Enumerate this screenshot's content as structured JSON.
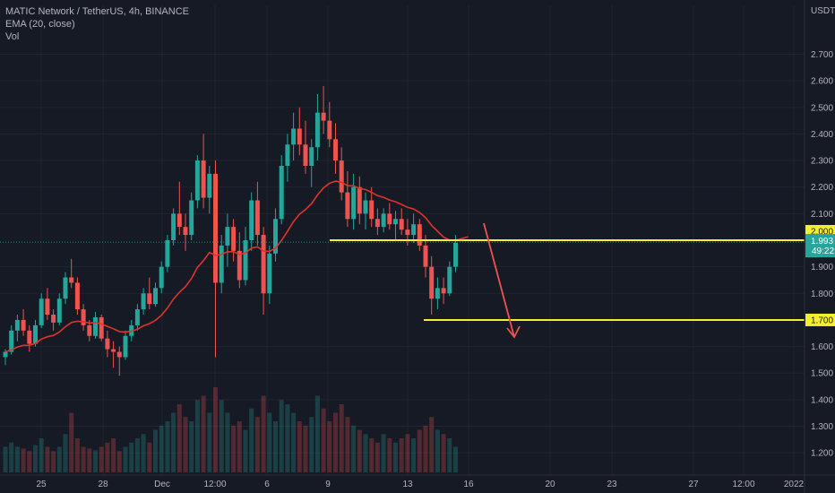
{
  "legend": {
    "symbol": "MATIC Network / TetherUS, 4h, BINANCE",
    "indicator": "EMA (20, close)",
    "volume": "Vol"
  },
  "colors": {
    "background": "#161a25",
    "bull": "#26a69a",
    "bear": "#ef5350",
    "ema": "#e0342a",
    "level_line": "#f4ee2e",
    "arrow": "#f0524f",
    "current_box": "#26a69a",
    "grid": "#1f2430"
  },
  "chart_data": {
    "type": "candlestick",
    "symbol": "MATIC Network / TetherUS",
    "timeframe": "4h",
    "exchange": "BINANCE",
    "currency": "USDT",
    "ylim": [
      1.15,
      2.85
    ],
    "y_ticks": [
      "2.700",
      "2.600",
      "2.500",
      "2.400",
      "2.300",
      "2.200",
      "2.100",
      "1.900",
      "1.800",
      "1.600",
      "1.500",
      "1.400",
      "1.300",
      "1.200"
    ],
    "x_ticks": [
      "25",
      "28",
      "Dec",
      "12:00",
      "6",
      "9",
      "13",
      "16",
      "20",
      "23",
      "27",
      "12:00",
      "2022"
    ],
    "current_price": "1.993",
    "countdown": "49:22",
    "levels": [
      {
        "label": "2.000",
        "value": 2.0
      },
      {
        "label": "1.700",
        "value": 1.7
      }
    ],
    "candles": [
      [
        1.56,
        1.59,
        1.53,
        1.58
      ],
      [
        1.58,
        1.68,
        1.57,
        1.66
      ],
      [
        1.66,
        1.72,
        1.62,
        1.7
      ],
      [
        1.7,
        1.74,
        1.64,
        1.66
      ],
      [
        1.66,
        1.68,
        1.58,
        1.61
      ],
      [
        1.61,
        1.7,
        1.6,
        1.68
      ],
      [
        1.68,
        1.8,
        1.67,
        1.78
      ],
      [
        1.78,
        1.82,
        1.7,
        1.72
      ],
      [
        1.72,
        1.74,
        1.66,
        1.69
      ],
      [
        1.69,
        1.8,
        1.68,
        1.78
      ],
      [
        1.78,
        1.88,
        1.76,
        1.86
      ],
      [
        1.86,
        1.93,
        1.82,
        1.84
      ],
      [
        1.84,
        1.86,
        1.72,
        1.74
      ],
      [
        1.74,
        1.76,
        1.66,
        1.68
      ],
      [
        1.68,
        1.7,
        1.62,
        1.64
      ],
      [
        1.64,
        1.73,
        1.63,
        1.71
      ],
      [
        1.71,
        1.72,
        1.62,
        1.63
      ],
      [
        1.63,
        1.66,
        1.56,
        1.59
      ],
      [
        1.59,
        1.62,
        1.52,
        1.58
      ],
      [
        1.58,
        1.6,
        1.49,
        1.56
      ],
      [
        1.56,
        1.66,
        1.55,
        1.64
      ],
      [
        1.64,
        1.7,
        1.62,
        1.68
      ],
      [
        1.68,
        1.76,
        1.66,
        1.74
      ],
      [
        1.74,
        1.82,
        1.72,
        1.8
      ],
      [
        1.8,
        1.86,
        1.74,
        1.76
      ],
      [
        1.76,
        1.84,
        1.75,
        1.82
      ],
      [
        1.82,
        1.92,
        1.8,
        1.9
      ],
      [
        1.9,
        2.02,
        1.88,
        2.0
      ],
      [
        2.0,
        2.12,
        1.98,
        2.1
      ],
      [
        2.1,
        2.22,
        2.02,
        2.05
      ],
      [
        2.05,
        2.1,
        1.96,
        2.02
      ],
      [
        2.02,
        2.18,
        2.0,
        2.15
      ],
      [
        2.15,
        2.32,
        2.12,
        2.3
      ],
      [
        2.3,
        2.4,
        2.12,
        2.16
      ],
      [
        2.16,
        2.28,
        2.1,
        2.25
      ],
      [
        2.25,
        2.3,
        1.56,
        1.84
      ],
      [
        1.84,
        2.02,
        1.8,
        1.98
      ],
      [
        1.98,
        2.1,
        1.9,
        2.05
      ],
      [
        2.05,
        2.08,
        1.92,
        1.96
      ],
      [
        1.96,
        2.03,
        1.82,
        1.85
      ],
      [
        1.85,
        2.05,
        1.83,
        2.0
      ],
      [
        2.0,
        2.18,
        1.96,
        2.15
      ],
      [
        2.15,
        2.22,
        1.98,
        2.02
      ],
      [
        2.02,
        2.05,
        1.72,
        1.8
      ],
      [
        1.8,
        1.98,
        1.76,
        1.95
      ],
      [
        1.95,
        2.12,
        1.92,
        2.08
      ],
      [
        2.08,
        2.32,
        2.06,
        2.28
      ],
      [
        2.28,
        2.4,
        2.22,
        2.36
      ],
      [
        2.36,
        2.48,
        2.3,
        2.42
      ],
      [
        2.42,
        2.5,
        2.32,
        2.36
      ],
      [
        2.36,
        2.45,
        2.25,
        2.28
      ],
      [
        2.28,
        2.38,
        2.2,
        2.35
      ],
      [
        2.35,
        2.55,
        2.3,
        2.48
      ],
      [
        2.48,
        2.58,
        2.4,
        2.45
      ],
      [
        2.45,
        2.52,
        2.35,
        2.38
      ],
      [
        2.38,
        2.44,
        2.25,
        2.3
      ],
      [
        2.3,
        2.35,
        2.15,
        2.18
      ],
      [
        2.18,
        2.26,
        2.05,
        2.08
      ],
      [
        2.08,
        2.25,
        2.04,
        2.2
      ],
      [
        2.2,
        2.24,
        2.06,
        2.1
      ],
      [
        2.1,
        2.18,
        2.04,
        2.15
      ],
      [
        2.15,
        2.2,
        2.05,
        2.08
      ],
      [
        2.08,
        2.12,
        2.02,
        2.05
      ],
      [
        2.05,
        2.12,
        2.03,
        2.1
      ],
      [
        2.1,
        2.14,
        2.04,
        2.06
      ],
      [
        2.06,
        2.11,
        2.0,
        2.08
      ],
      [
        2.08,
        2.12,
        2.02,
        2.04
      ],
      [
        2.04,
        2.08,
        1.98,
        2.02
      ],
      [
        2.02,
        2.1,
        1.99,
        2.06
      ],
      [
        2.06,
        2.08,
        1.96,
        1.98
      ],
      [
        1.98,
        2.02,
        1.86,
        1.9
      ],
      [
        1.9,
        1.94,
        1.72,
        1.78
      ],
      [
        1.78,
        1.86,
        1.74,
        1.82
      ],
      [
        1.82,
        1.86,
        1.76,
        1.8
      ],
      [
        1.8,
        1.92,
        1.79,
        1.9
      ],
      [
        1.9,
        2.02,
        1.88,
        1.99
      ]
    ],
    "volumes": [
      0.3,
      0.35,
      0.3,
      0.28,
      0.25,
      0.32,
      0.4,
      0.3,
      0.25,
      0.3,
      0.45,
      0.7,
      0.4,
      0.3,
      0.28,
      0.26,
      0.3,
      0.35,
      0.4,
      0.25,
      0.3,
      0.35,
      0.4,
      0.45,
      0.35,
      0.5,
      0.55,
      0.6,
      0.7,
      0.8,
      0.65,
      0.6,
      0.85,
      0.9,
      0.7,
      1.0,
      0.85,
      0.7,
      0.55,
      0.6,
      0.5,
      0.75,
      0.65,
      0.9,
      0.7,
      0.6,
      0.85,
      0.8,
      0.7,
      0.6,
      0.55,
      0.65,
      0.9,
      0.75,
      0.6,
      0.7,
      0.8,
      0.65,
      0.55,
      0.5,
      0.45,
      0.4,
      0.35,
      0.45,
      0.4,
      0.35,
      0.4,
      0.45,
      0.4,
      0.5,
      0.55,
      0.65,
      0.5,
      0.45,
      0.4,
      0.3
    ]
  }
}
